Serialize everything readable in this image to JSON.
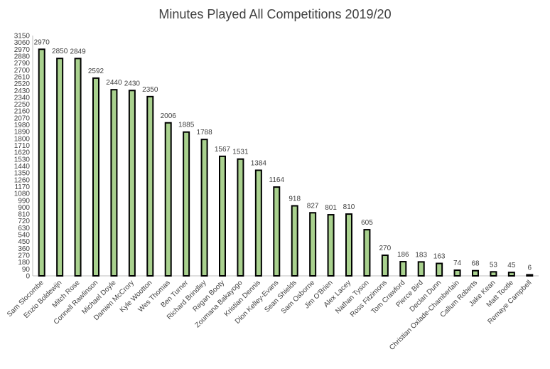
{
  "chart_data": {
    "type": "bar",
    "title": "Minutes Played All Competitions 2019/20",
    "xlabel": "",
    "ylabel": "",
    "ylim": [
      0,
      3150
    ],
    "ytick_step": 90,
    "grid": false,
    "legend": "none",
    "bar_color": "#a9d18e",
    "bar_edge_color": "#000000",
    "categories": [
      "Sam Slocombe",
      "Enzio Boldewijn",
      "Mitch Rose",
      "Connell Rawlinson",
      "Michael Doyle",
      "Damien McCrory",
      "Kyle Wootton",
      "Wes Thomas",
      "Ben Turner",
      "Richard Brindley",
      "Regan Booty",
      "Zoumana Bakayogo",
      "Kristian Dennis",
      "Dion Kelley-Evans",
      "Sean Shields",
      "Sam Osborne",
      "Jim O'Brien",
      "Alex Lacey",
      "Nathan Tyson",
      "Ross Fitzimons",
      "Tom Crawford",
      "Pierce Bird",
      "Declan Dunn",
      "Christian Oxlade-Chamberlain",
      "Callum Roberts",
      "Jake Kean",
      "Matt Tootle",
      "Remaye Campbell"
    ],
    "values": [
      2970,
      2850,
      2849,
      2592,
      2440,
      2430,
      2350,
      2006,
      1885,
      1788,
      1567,
      1531,
      1384,
      1164,
      918,
      827,
      801,
      810,
      605,
      270,
      186,
      183,
      163,
      74,
      68,
      53,
      45,
      6
    ]
  }
}
